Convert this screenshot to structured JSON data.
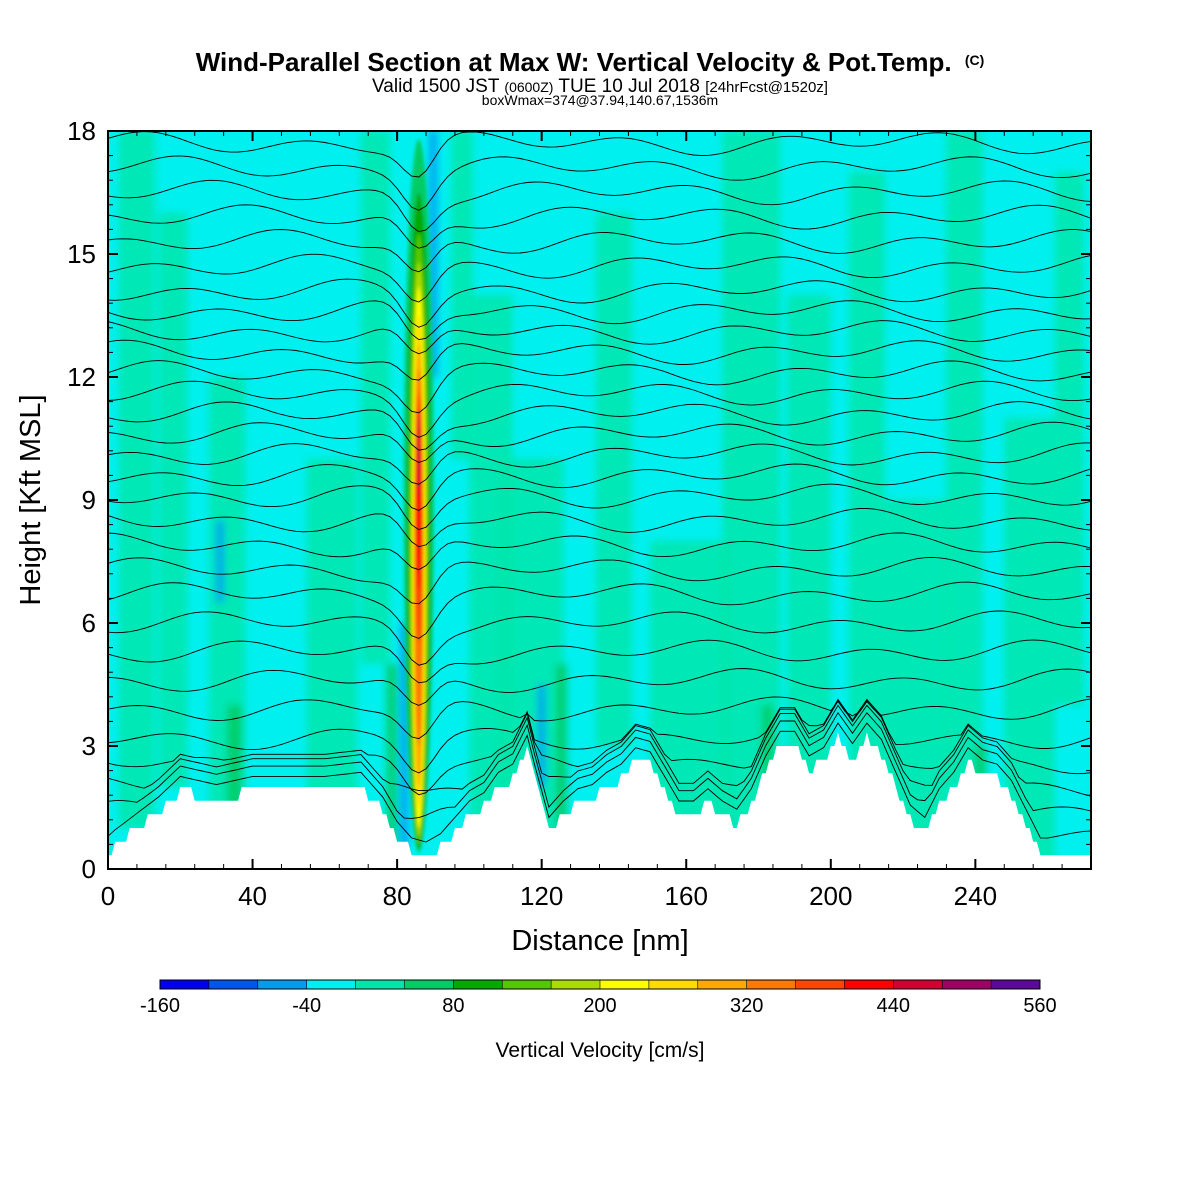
{
  "header": {
    "title": "Wind-Parallel Section at Max W: Vertical Velocity & Pot.Temp.",
    "copyright": "(C)",
    "valid_line": {
      "part1": "Valid 1500 JST",
      "utc": "(0600Z)",
      "part2": "TUE 10 Jul 2018",
      "forecast": "[24hrFcst@1520z]"
    },
    "box_line": "boxWmax=374@37.94,140.67,1536m"
  },
  "chart_data": {
    "type": "heatmap",
    "title": "Wind-Parallel Section at Max W: Vertical Velocity & Pot.Temp.",
    "xlabel": "Distance [nm]",
    "ylabel": "Height [Kft MSL]",
    "xlim": [
      0,
      272
    ],
    "ylim": [
      0,
      18
    ],
    "xticks": [
      0,
      40,
      80,
      120,
      160,
      200,
      240
    ],
    "yticks": [
      0,
      3,
      6,
      9,
      12,
      15,
      18
    ],
    "grid": false,
    "background_value_range": "-40 to 80 cm/s",
    "updraft_core": {
      "x_nm": 86,
      "max_cm_s": 374,
      "height_range_kft": [
        0.5,
        17
      ]
    },
    "terrain_kft": {
      "x": [
        0,
        2,
        8,
        14,
        20,
        30,
        40,
        50,
        60,
        70,
        76,
        80,
        84,
        88,
        92,
        96,
        100,
        104,
        108,
        112,
        116,
        118,
        122,
        126,
        130,
        134,
        138,
        142,
        146,
        150,
        154,
        158,
        162,
        166,
        170,
        174,
        178,
        182,
        186,
        190,
        194,
        198,
        202,
        206,
        210,
        214,
        218,
        222,
        226,
        230,
        234,
        238,
        242,
        246,
        250,
        254,
        258,
        262,
        266,
        272
      ],
      "y": [
        0.3,
        0.6,
        1.0,
        1.4,
        1.9,
        1.7,
        1.9,
        1.9,
        1.9,
        2.0,
        1.4,
        0.8,
        0.4,
        0.3,
        0.5,
        0.9,
        1.3,
        1.5,
        2.0,
        2.2,
        2.9,
        2.2,
        0.9,
        1.3,
        1.6,
        1.7,
        2.0,
        2.2,
        2.6,
        2.5,
        1.9,
        1.3,
        1.3,
        1.6,
        1.3,
        1.1,
        1.6,
        2.4,
        3.0,
        3.0,
        2.4,
        2.6,
        3.2,
        2.7,
        3.2,
        2.8,
        2.0,
        1.2,
        0.9,
        1.6,
        2.0,
        2.6,
        2.3,
        2.2,
        1.8,
        1.1,
        0.4,
        0.3,
        0.3,
        0.3
      ]
    },
    "theta_contour_heights_kft": [
      0.8,
      1.4,
      2.0,
      2.6,
      3.2,
      3.9,
      4.6,
      5.3,
      6.0,
      6.7,
      7.3,
      7.9,
      8.5,
      9.1,
      9.6,
      10.1,
      10.6,
      11.1,
      11.6,
      12.1,
      12.6,
      13.1,
      13.6,
      14.1,
      14.7,
      15.3,
      15.9,
      16.5,
      17.1,
      17.7
    ]
  },
  "colorbar": {
    "title": "Vertical Velocity [cm/s]",
    "tick_labels": [
      "-160",
      "-40",
      "80",
      "200",
      "320",
      "440",
      "560"
    ],
    "colors": [
      "#0000ee",
      "#0055f0",
      "#009cf0",
      "#00f0f0",
      "#00e6aa",
      "#00cc66",
      "#00aa00",
      "#55c800",
      "#aadc00",
      "#ffff00",
      "#ffdc00",
      "#ffaa00",
      "#ff7800",
      "#ff4600",
      "#ff0000",
      "#d20032",
      "#a00064",
      "#5a0a96"
    ]
  }
}
